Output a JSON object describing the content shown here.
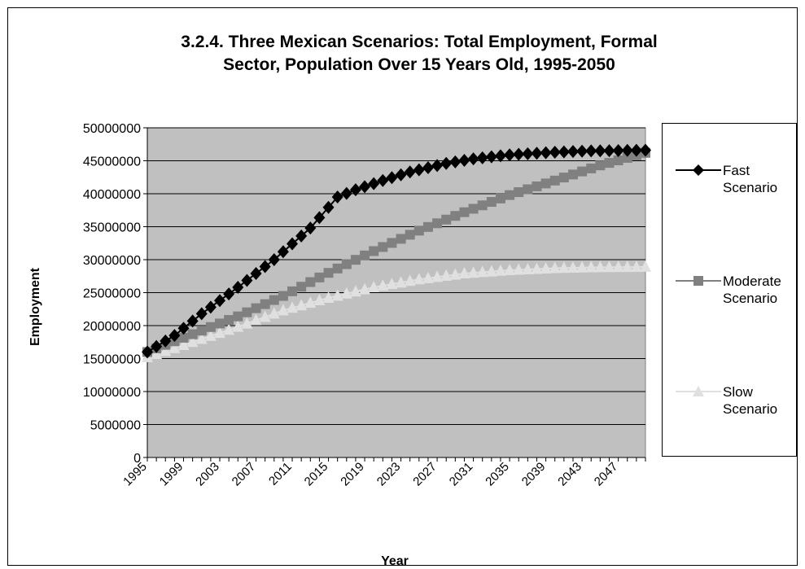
{
  "chart_data": {
    "type": "line",
    "title_line1": "3.2.4. Three Mexican Scenarios: Total Employment, Formal",
    "title_line2": "Sector, Population Over 15 Years Old, 1995-2050",
    "xlabel": "Year",
    "ylabel": "Employment",
    "x_start": 1995,
    "x_end": 2050,
    "x_tick_labels": [
      "1995",
      "1999",
      "2003",
      "2007",
      "2011",
      "2015",
      "2019",
      "2023",
      "2027",
      "2031",
      "2035",
      "2039",
      "2043",
      "2047"
    ],
    "y_tick_labels": [
      "0",
      "5000000",
      "10000000",
      "15000000",
      "20000000",
      "25000000",
      "30000000",
      "35000000",
      "40000000",
      "45000000",
      "50000000"
    ],
    "ylim": [
      0,
      50000000
    ],
    "grid": "horizontal",
    "plot_background": "#c0c0c0",
    "legend_position": "right",
    "series": [
      {
        "name": "Fast Scenario",
        "label_line1": "Fast",
        "label_line2": "Scenario",
        "marker": "diamond",
        "color": "#000000",
        "anchors": [
          [
            1995,
            16000000
          ],
          [
            1998,
            18500000
          ],
          [
            2001,
            21800000
          ],
          [
            2005,
            25800000
          ],
          [
            2009,
            30000000
          ],
          [
            2013,
            34800000
          ],
          [
            2016,
            39500000
          ],
          [
            2018,
            40600000
          ],
          [
            2021,
            42000000
          ],
          [
            2024,
            43300000
          ],
          [
            2028,
            44600000
          ],
          [
            2031,
            45300000
          ],
          [
            2035,
            45900000
          ],
          [
            2040,
            46300000
          ],
          [
            2044,
            46500000
          ],
          [
            2050,
            46600000
          ]
        ]
      },
      {
        "name": "Moderate Scenario",
        "label_line1": "Moderate",
        "label_line2": "Scenario",
        "marker": "square",
        "color": "#808080",
        "anchors": [
          [
            1995,
            16000000
          ],
          [
            2000,
            18700000
          ],
          [
            2005,
            21400000
          ],
          [
            2010,
            24500000
          ],
          [
            2015,
            28000000
          ],
          [
            2020,
            31300000
          ],
          [
            2025,
            34400000
          ],
          [
            2030,
            37200000
          ],
          [
            2035,
            39800000
          ],
          [
            2040,
            42000000
          ],
          [
            2045,
            44300000
          ],
          [
            2050,
            46200000
          ]
        ]
      },
      {
        "name": "Slow Scenario",
        "label_line1": "Slow",
        "label_line2": "Scenario",
        "marker": "triangle",
        "color": "#e0e0e0",
        "anchors": [
          [
            1995,
            15200000
          ],
          [
            2000,
            17500000
          ],
          [
            2005,
            19800000
          ],
          [
            2010,
            22300000
          ],
          [
            2015,
            24200000
          ],
          [
            2020,
            25800000
          ],
          [
            2025,
            27000000
          ],
          [
            2030,
            27900000
          ],
          [
            2035,
            28400000
          ],
          [
            2040,
            28700000
          ],
          [
            2045,
            28850000
          ],
          [
            2050,
            28900000
          ]
        ]
      }
    ]
  }
}
